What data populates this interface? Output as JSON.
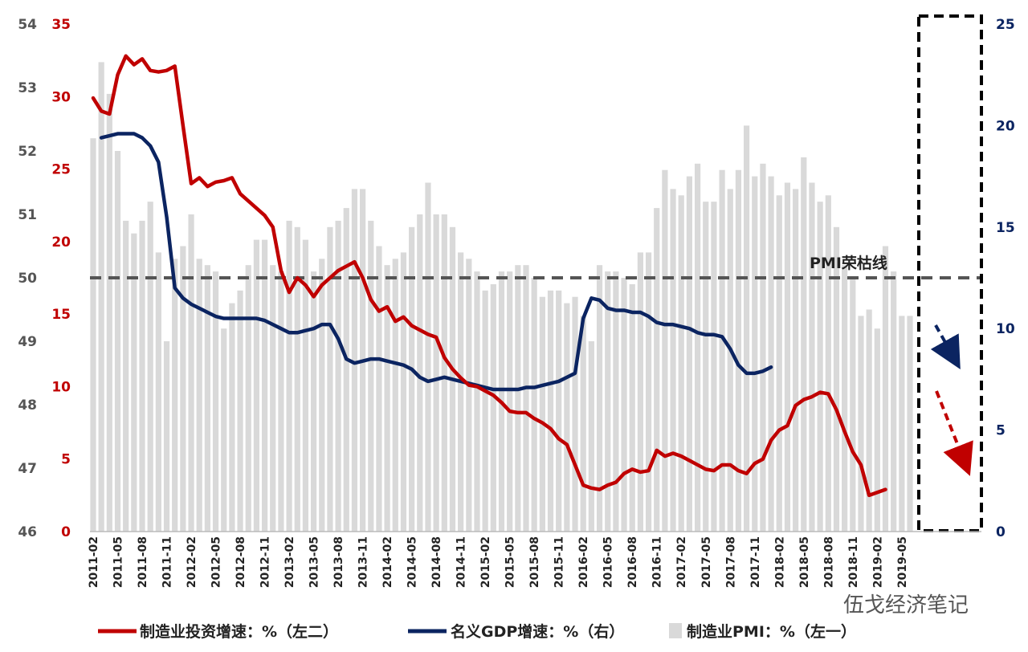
{
  "chart_data": {
    "type": "bar+line",
    "title": "",
    "colors": {
      "investment": "#c00000",
      "gdp": "#0b2461",
      "pmi": "#d9d9d9",
      "left1_axis": "#555555",
      "left2_axis": "#c00000",
      "right_axis": "#0b2461"
    },
    "axes": {
      "left1": {
        "min": 46,
        "max": 54,
        "ticks": [
          "46",
          "47",
          "48",
          "49",
          "50",
          "51",
          "52",
          "53",
          "54"
        ]
      },
      "left2": {
        "min": 0,
        "max": 35,
        "ticks": [
          "0",
          "5",
          "10",
          "15",
          "20",
          "25",
          "30",
          "35"
        ]
      },
      "right": {
        "min": 0,
        "max": 25,
        "ticks": [
          "0",
          "5",
          "10",
          "15",
          "20",
          "25"
        ]
      }
    },
    "x_tick_labels": [
      "2011-02",
      "2011-05",
      "2011-08",
      "2011-11",
      "2012-02",
      "2012-05",
      "2012-08",
      "2012-11",
      "2013-02",
      "2013-05",
      "2013-08",
      "2013-11",
      "2014-02",
      "2014-05",
      "2014-08",
      "2014-11",
      "2015-02",
      "2015-05",
      "2015-08",
      "2015-11",
      "2016-02",
      "2016-05",
      "2016-08",
      "2016-11",
      "2017-02",
      "2017-05",
      "2017-08",
      "2017-11",
      "2018-02",
      "2018-05",
      "2018-08",
      "2018-11",
      "2019-02",
      "2019-05"
    ],
    "start_month": "2011-02",
    "series": [
      {
        "name": "制造业PMI：%（左一）",
        "axis": "left1",
        "kind": "bar",
        "values": [
          52.2,
          53.4,
          52.9,
          52.0,
          50.9,
          50.7,
          50.9,
          51.2,
          50.4,
          49.0,
          50.3,
          50.5,
          51.0,
          50.3,
          50.2,
          50.1,
          49.2,
          49.6,
          49.8,
          50.2,
          50.6,
          50.6,
          50.2,
          50.1,
          50.9,
          50.8,
          50.6,
          50.1,
          50.3,
          50.8,
          50.9,
          51.1,
          51.4,
          51.4,
          50.9,
          50.5,
          50.2,
          50.3,
          50.4,
          50.8,
          51.0,
          51.5,
          51.0,
          51.0,
          50.8,
          50.4,
          50.3,
          50.1,
          49.8,
          49.9,
          50.1,
          50.1,
          50.2,
          50.2,
          50.0,
          49.7,
          49.8,
          49.8,
          49.6,
          49.7,
          49.4,
          49.0,
          50.2,
          50.1,
          50.1,
          50.0,
          49.9,
          50.4,
          50.4,
          51.1,
          51.7,
          51.4,
          51.3,
          51.6,
          51.8,
          51.2,
          51.2,
          51.7,
          51.4,
          51.7,
          52.4,
          51.6,
          51.8,
          51.6,
          51.3,
          51.5,
          51.4,
          51.9,
          51.5,
          51.2,
          51.3,
          50.8,
          50.2,
          50.0,
          49.4,
          49.5,
          49.2,
          50.5,
          50.1,
          49.4,
          49.4
        ]
      },
      {
        "name": "制造业投资增速：%（左二）",
        "axis": "left2",
        "kind": "line",
        "values": [
          29.9,
          29.0,
          28.8,
          31.5,
          32.8,
          32.2,
          32.6,
          31.8,
          31.7,
          31.8,
          32.1,
          28.0,
          24.0,
          24.4,
          23.8,
          24.1,
          24.2,
          24.4,
          23.3,
          22.8,
          22.3,
          21.8,
          21.0,
          18.0,
          16.5,
          17.5,
          17.0,
          16.2,
          17.0,
          17.5,
          18.0,
          18.3,
          18.6,
          17.5,
          16.0,
          15.2,
          15.5,
          14.5,
          14.8,
          14.2,
          13.9,
          13.6,
          13.4,
          12.0,
          11.2,
          10.6,
          10.1,
          10.0,
          9.7,
          9.4,
          8.9,
          8.3,
          8.2,
          8.2,
          7.8,
          7.5,
          7.1,
          6.4,
          6.0,
          4.6,
          3.2,
          3.0,
          2.9,
          3.2,
          3.4,
          4.0,
          4.3,
          4.1,
          4.2,
          5.6,
          5.2,
          5.4,
          5.2,
          4.9,
          4.6,
          4.3,
          4.2,
          4.6,
          4.6,
          4.2,
          4.0,
          4.7,
          5.0,
          6.3,
          7.0,
          7.3,
          8.7,
          9.1,
          9.3,
          9.6,
          9.5,
          8.4,
          6.9,
          5.5,
          4.6,
          2.5,
          2.7,
          2.9
        ]
      },
      {
        "name": "名义GDP增速：%（右）",
        "axis": "right",
        "kind": "line",
        "values": [
          null,
          19.4,
          19.5,
          19.6,
          19.6,
          19.6,
          19.4,
          19.0,
          18.2,
          15.5,
          12.0,
          11.5,
          11.2,
          11.0,
          10.8,
          10.6,
          10.5,
          10.5,
          10.5,
          10.5,
          10.5,
          10.4,
          10.2,
          10.0,
          9.8,
          9.8,
          9.9,
          10.0,
          10.2,
          10.2,
          9.5,
          8.5,
          8.3,
          8.4,
          8.5,
          8.5,
          8.4,
          8.3,
          8.2,
          8.0,
          7.6,
          7.4,
          7.5,
          7.6,
          7.5,
          7.4,
          7.3,
          7.2,
          7.1,
          7.0,
          7.0,
          7.0,
          7.0,
          7.1,
          7.1,
          7.2,
          7.3,
          7.4,
          7.6,
          7.8,
          10.5,
          11.5,
          11.4,
          11.0,
          10.9,
          10.9,
          10.8,
          10.8,
          10.6,
          10.3,
          10.2,
          10.2,
          10.1,
          10.0,
          9.8,
          9.7,
          9.7,
          9.6,
          9.0,
          8.2,
          7.8,
          7.8,
          7.9,
          8.1
        ]
      }
    ],
    "annotations": {
      "pmi_threshold_label": "PMI荣枯线",
      "pmi_threshold_value": 50
    },
    "legend": {
      "placement": "bottom",
      "items": [
        {
          "label": "制造业投资增速：%（左二）",
          "color": "#c00000",
          "kind": "line"
        },
        {
          "label": "名义GDP增速：%（右）",
          "color": "#0b2461",
          "kind": "line"
        },
        {
          "label": "制造业PMI：%（左一）",
          "color": "#d9d9d9",
          "kind": "bar"
        }
      ]
    },
    "watermark": "伍戈经济笔记"
  }
}
